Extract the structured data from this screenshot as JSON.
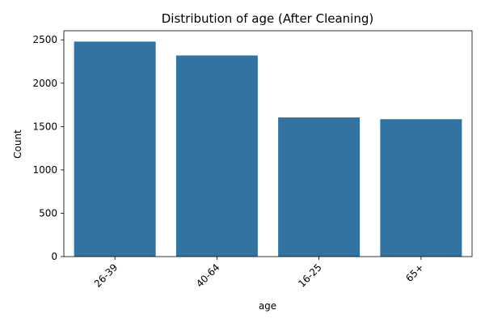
{
  "chart_data": {
    "type": "bar",
    "title": "Distribution of age (After Cleaning)",
    "xlabel": "age",
    "ylabel": "Count",
    "categories": [
      "26-39",
      "40-64",
      "16-25",
      "65+"
    ],
    "values": [
      2480,
      2320,
      1605,
      1585
    ],
    "ylim": [
      0,
      2605
    ],
    "yticks": [
      0,
      500,
      1000,
      1500,
      2000,
      2500
    ],
    "bar_color": "#3274a1",
    "grid": false,
    "legend": "none",
    "x_tick_rotation": 45
  }
}
